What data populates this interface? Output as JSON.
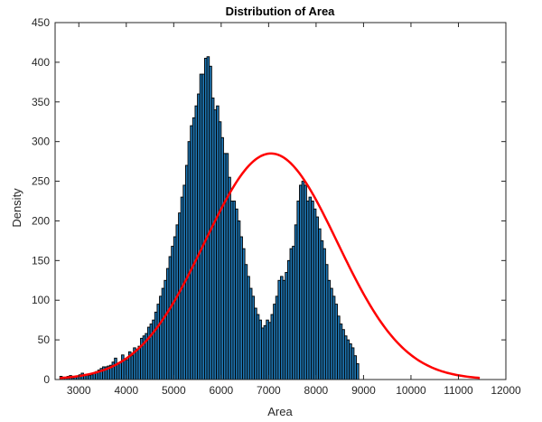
{
  "chart_data": {
    "type": "bar",
    "title": "Distribution of Area",
    "xlabel": "Area",
    "ylabel": "Density",
    "xlim": [
      2500,
      12000
    ],
    "ylim": [
      0,
      450
    ],
    "xticks": [
      3000,
      4000,
      5000,
      6000,
      7000,
      8000,
      9000,
      10000,
      11000,
      12000
    ],
    "yticks": [
      0,
      50,
      100,
      150,
      200,
      250,
      300,
      350,
      400,
      450
    ],
    "grid": false,
    "histogram": {
      "bin_start": 2600,
      "bin_width": 50,
      "values": [
        4,
        3,
        2,
        4,
        5,
        2,
        3,
        4,
        6,
        8,
        6,
        6,
        5,
        6,
        8,
        10,
        12,
        14,
        16,
        16,
        17,
        18,
        22,
        27,
        20,
        22,
        31,
        26,
        25,
        35,
        30,
        40,
        38,
        42,
        52,
        55,
        58,
        66,
        70,
        75,
        85,
        95,
        105,
        115,
        125,
        140,
        155,
        168,
        180,
        195,
        210,
        230,
        245,
        270,
        300,
        320,
        330,
        345,
        360,
        385,
        385,
        405,
        407,
        395,
        355,
        340,
        345,
        325,
        305,
        285,
        285,
        255,
        225,
        225,
        215,
        200,
        180,
        165,
        145,
        130,
        115,
        105,
        90,
        82,
        75,
        65,
        68,
        75,
        72,
        82,
        95,
        105,
        125,
        130,
        125,
        135,
        150,
        165,
        168,
        195,
        225,
        245,
        250,
        245,
        225,
        230,
        225,
        215,
        205,
        190,
        175,
        165,
        145,
        125,
        115,
        105,
        95,
        80,
        70,
        63,
        55,
        50,
        45,
        40,
        30,
        20
      ],
      "color": "#1f77b4",
      "edge_color": "#000000"
    },
    "fit_curve": {
      "type": "normal",
      "mean": 7050,
      "std": 1400,
      "peak": 285,
      "x_range": [
        2600,
        11450
      ],
      "color": "#ff0000"
    }
  }
}
